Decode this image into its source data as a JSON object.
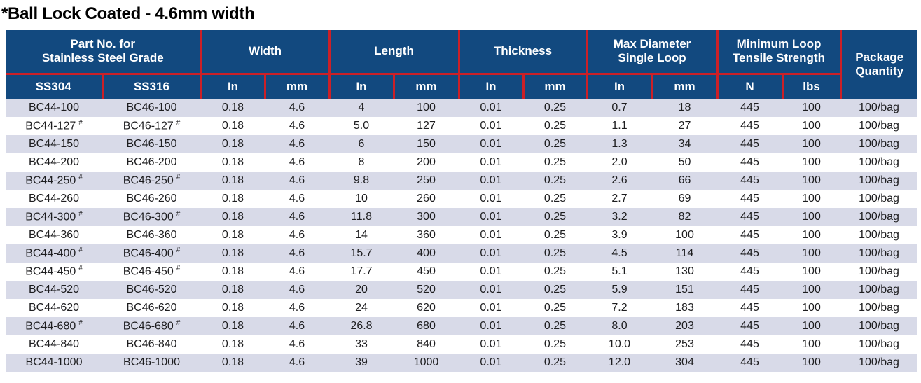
{
  "title": "*Ball Lock Coated - 4.6mm width",
  "colors": {
    "header-bg": "#12497f",
    "header-text": "#ffffff",
    "grid-red": "#cc2027",
    "row-alt": "#d8dae8",
    "row-plain": "#ffffff",
    "body-text": "#1d1d1f",
    "title-text": "#000000"
  },
  "table": {
    "hash_symbol": "#",
    "header_groups": [
      {
        "id": "part-no",
        "label": "Part No. for\nStainless Steel Grade",
        "colspan": 2,
        "rowspan": 1
      },
      {
        "id": "width",
        "label": "Width",
        "colspan": 2,
        "rowspan": 1
      },
      {
        "id": "length",
        "label": "Length",
        "colspan": 2,
        "rowspan": 1
      },
      {
        "id": "thickness",
        "label": "Thickness",
        "colspan": 2,
        "rowspan": 1
      },
      {
        "id": "max-diameter",
        "label": "Max Diameter\nSingle Loop",
        "colspan": 2,
        "rowspan": 1
      },
      {
        "id": "tensile",
        "label": "Minimum Loop\nTensile Strength",
        "colspan": 2,
        "rowspan": 1
      },
      {
        "id": "package",
        "label": "Package\nQuantity",
        "colspan": 1,
        "rowspan": 2
      }
    ],
    "unit_headers": [
      {
        "id": "ss304",
        "label": "SS304"
      },
      {
        "id": "ss316",
        "label": "SS316"
      },
      {
        "id": "width-in",
        "label": "In"
      },
      {
        "id": "width-mm",
        "label": "mm"
      },
      {
        "id": "length-in",
        "label": "In"
      },
      {
        "id": "length-mm",
        "label": "mm"
      },
      {
        "id": "thickness-in",
        "label": "In"
      },
      {
        "id": "thickness-mm",
        "label": "mm"
      },
      {
        "id": "maxdia-in",
        "label": "In"
      },
      {
        "id": "maxdia-mm",
        "label": "mm"
      },
      {
        "id": "tensile-n",
        "label": "N"
      },
      {
        "id": "tensile-lbs",
        "label": "lbs"
      }
    ],
    "rows": [
      {
        "hash": false,
        "cells": [
          "BC44-100",
          "BC46-100",
          "0.18",
          "4.6",
          "4",
          "100",
          "0.01",
          "0.25",
          "0.7",
          "18",
          "445",
          "100",
          "100/bag"
        ]
      },
      {
        "hash": true,
        "cells": [
          "BC44-127",
          "BC46-127",
          "0.18",
          "4.6",
          "5.0",
          "127",
          "0.01",
          "0.25",
          "1.1",
          "27",
          "445",
          "100",
          "100/bag"
        ]
      },
      {
        "hash": false,
        "cells": [
          "BC44-150",
          "BC46-150",
          "0.18",
          "4.6",
          "6",
          "150",
          "0.01",
          "0.25",
          "1.3",
          "34",
          "445",
          "100",
          "100/bag"
        ]
      },
      {
        "hash": false,
        "cells": [
          "BC44-200",
          "BC46-200",
          "0.18",
          "4.6",
          "8",
          "200",
          "0.01",
          "0.25",
          "2.0",
          "50",
          "445",
          "100",
          "100/bag"
        ]
      },
      {
        "hash": true,
        "cells": [
          "BC44-250",
          "BC46-250",
          "0.18",
          "4.6",
          "9.8",
          "250",
          "0.01",
          "0.25",
          "2.6",
          "66",
          "445",
          "100",
          "100/bag"
        ]
      },
      {
        "hash": false,
        "cells": [
          "BC44-260",
          "BC46-260",
          "0.18",
          "4.6",
          "10",
          "260",
          "0.01",
          "0.25",
          "2.7",
          "69",
          "445",
          "100",
          "100/bag"
        ]
      },
      {
        "hash": true,
        "cells": [
          "BC44-300",
          "BC46-300",
          "0.18",
          "4.6",
          "11.8",
          "300",
          "0.01",
          "0.25",
          "3.2",
          "82",
          "445",
          "100",
          "100/bag"
        ]
      },
      {
        "hash": false,
        "cells": [
          "BC44-360",
          "BC46-360",
          "0.18",
          "4.6",
          "14",
          "360",
          "0.01",
          "0.25",
          "3.9",
          "100",
          "445",
          "100",
          "100/bag"
        ]
      },
      {
        "hash": true,
        "cells": [
          "BC44-400",
          "BC46-400",
          "0.18",
          "4.6",
          "15.7",
          "400",
          "0.01",
          "0.25",
          "4.5",
          "114",
          "445",
          "100",
          "100/bag"
        ]
      },
      {
        "hash": true,
        "cells": [
          "BC44-450",
          "BC46-450",
          "0.18",
          "4.6",
          "17.7",
          "450",
          "0.01",
          "0.25",
          "5.1",
          "130",
          "445",
          "100",
          "100/bag"
        ]
      },
      {
        "hash": false,
        "cells": [
          "BC44-520",
          "BC46-520",
          "0.18",
          "4.6",
          "20",
          "520",
          "0.01",
          "0.25",
          "5.9",
          "151",
          "445",
          "100",
          "100/bag"
        ]
      },
      {
        "hash": false,
        "cells": [
          "BC44-620",
          "BC46-620",
          "0.18",
          "4.6",
          "24",
          "620",
          "0.01",
          "0.25",
          "7.2",
          "183",
          "445",
          "100",
          "100/bag"
        ]
      },
      {
        "hash": true,
        "cells": [
          "BC44-680",
          "BC46-680",
          "0.18",
          "4.6",
          "26.8",
          "680",
          "0.01",
          "0.25",
          "8.0",
          "203",
          "445",
          "100",
          "100/bag"
        ]
      },
      {
        "hash": false,
        "cells": [
          "BC44-840",
          "BC46-840",
          "0.18",
          "4.6",
          "33",
          "840",
          "0.01",
          "0.25",
          "10.0",
          "253",
          "445",
          "100",
          "100/bag"
        ]
      },
      {
        "hash": false,
        "cells": [
          "BC44-1000",
          "BC46-1000",
          "0.18",
          "4.6",
          "39",
          "1000",
          "0.01",
          "0.25",
          "12.0",
          "304",
          "445",
          "100",
          "100/bag"
        ]
      }
    ],
    "column_ids": [
      "ss304",
      "ss316",
      "width-in",
      "width-mm",
      "length-in",
      "length-mm",
      "thickness-in",
      "thickness-mm",
      "maxdia-in",
      "maxdia-mm",
      "tensile-n",
      "tensile-lbs",
      "package-quantity"
    ]
  }
}
